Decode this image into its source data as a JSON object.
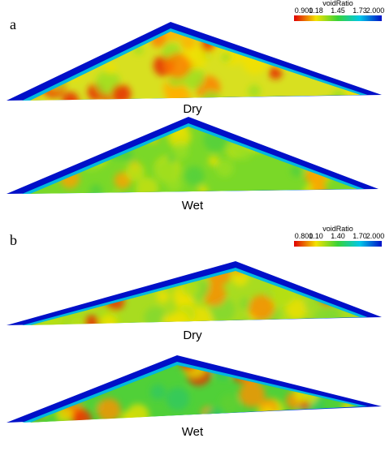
{
  "panels": [
    {
      "label": "a",
      "colorbar": {
        "title": "voidRatio",
        "ticks": [
          "0.900",
          "1.18",
          "1.45",
          "1.73",
          "2.000"
        ]
      },
      "piles": [
        {
          "label": "Dry"
        },
        {
          "label": "Wet"
        }
      ]
    },
    {
      "label": "b",
      "colorbar": {
        "title": "voidRatio",
        "ticks": [
          "0.800",
          "1.10",
          "1.40",
          "1.70",
          "2.000"
        ]
      },
      "piles": [
        {
          "label": "Dry"
        },
        {
          "label": "Wet"
        }
      ]
    }
  ]
}
